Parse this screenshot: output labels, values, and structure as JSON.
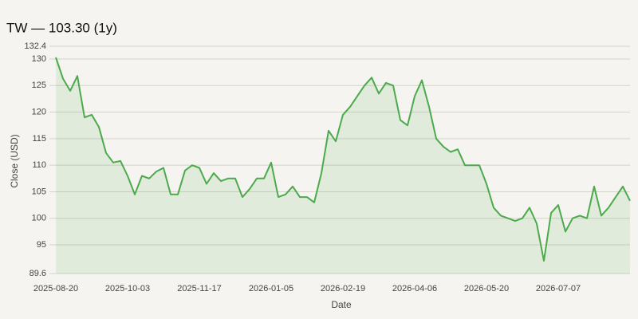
{
  "chart_data": {
    "type": "line",
    "title": "TW — 103.30 (1y)",
    "x_label": "Date",
    "y_label": "Close (USD)",
    "categories": [
      "2025-08-20",
      null,
      null,
      null,
      null,
      null,
      null,
      null,
      null,
      null,
      "2025-10-03",
      null,
      null,
      null,
      null,
      null,
      null,
      null,
      null,
      null,
      "2025-11-17",
      null,
      null,
      null,
      null,
      null,
      null,
      null,
      null,
      null,
      "2026-01-05",
      null,
      null,
      null,
      null,
      null,
      null,
      null,
      null,
      null,
      "2026-02-19",
      null,
      null,
      null,
      null,
      null,
      null,
      null,
      null,
      null,
      "2026-04-06",
      null,
      null,
      null,
      null,
      null,
      null,
      null,
      null,
      null,
      "2026-05-20",
      null,
      null,
      null,
      null,
      null,
      null,
      null,
      null,
      null,
      "2026-07-07",
      null,
      null,
      null,
      null,
      null,
      null,
      null,
      null,
      null,
      null
    ],
    "series": [
      {
        "name": "Close",
        "color": "#4caa4c",
        "values": [
          130.3,
          126.3,
          124,
          126.8,
          119,
          119.5,
          117.2,
          112.3,
          110.5,
          110.8,
          108,
          104.5,
          108,
          107.5,
          108.8,
          109.5,
          104.5,
          104.5,
          109,
          110,
          109.5,
          106.5,
          108.5,
          107,
          107.5,
          107.5,
          104,
          105.5,
          107.5,
          107.5,
          110.5,
          104,
          104.5,
          106,
          104,
          104,
          103,
          108.5,
          116.5,
          114.5,
          119.5,
          121,
          123,
          125,
          126.5,
          123.5,
          125.5,
          125,
          118.5,
          117.5,
          123,
          126,
          121,
          115,
          113.5,
          112.5,
          113,
          110,
          110,
          110,
          106.5,
          102,
          100.5,
          100,
          99.5,
          100,
          102,
          99,
          92,
          101,
          102.5,
          97.5,
          100,
          100.5,
          100,
          106,
          100.5,
          102,
          104,
          106,
          103.3
        ]
      }
    ],
    "ylim": [
      89.6,
      132.4
    ],
    "yticks": [
      89.6,
      95,
      100,
      105,
      110,
      115,
      120,
      125,
      130,
      132.4
    ],
    "grid": true
  }
}
